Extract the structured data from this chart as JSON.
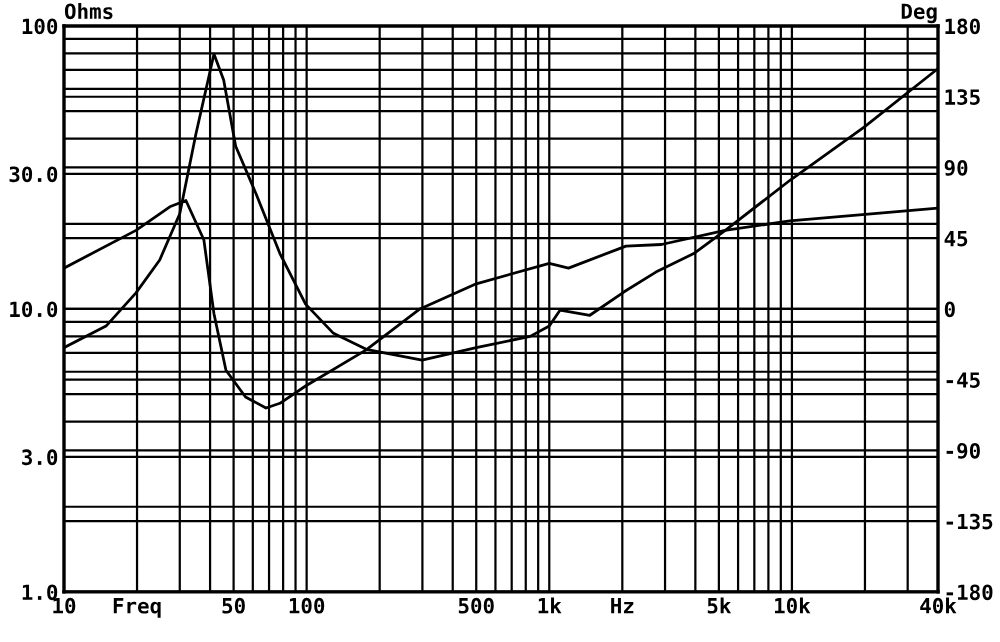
{
  "chart_data": {
    "type": "line",
    "ylabel": "Ohms",
    "y2label": "Deg",
    "log": "xy",
    "grid": true,
    "legend": false,
    "marker": "none",
    "line_style": "solid",
    "xlim": [
      10,
      40000
    ],
    "xticks": [
      10,
      {
        "value": 20,
        "label": "Freq"
      },
      50,
      100,
      500,
      {
        "value": 1000,
        "label": "1k"
      },
      {
        "value": 2000,
        "label": "Hz"
      },
      {
        "value": 5000,
        "label": "5k"
      },
      {
        "value": 10000,
        "label": "10k"
      },
      {
        "value": 40000,
        "label": "40k"
      }
    ],
    "ylim": [
      1,
      100
    ],
    "yticks": [
      {
        "value": 1,
        "label": "1.0"
      },
      {
        "value": 3,
        "label": "3.0"
      },
      {
        "value": 10,
        "label": "10.0"
      },
      {
        "value": 30,
        "label": "30.0"
      },
      100
    ],
    "y2lim": [
      -180,
      180
    ],
    "y2ticks": [
      -180,
      -135,
      -90,
      -45,
      0,
      45,
      90,
      135,
      180
    ],
    "series": [
      {
        "color": "#000000",
        "x": [
          10,
          14.9,
          19.8,
          24.8,
          30,
          35,
          41.5,
          45.5,
          51,
          61.8,
          77.6,
          99,
          129,
          176,
          299,
          500,
          834,
          1000,
          1107,
          1470,
          2035,
          2750,
          3940,
          5330,
          9820,
          19900,
          39400
        ],
        "values": [
          7.3,
          8.7,
          11.4,
          14.9,
          21.7,
          41.7,
          79.6,
          64.5,
          37.6,
          25.6,
          15.7,
          10.4,
          8.2,
          7.2,
          6.6,
          7.3,
          8.0,
          8.7,
          9.9,
          9.5,
          11.5,
          13.5,
          15.7,
          19,
          28.5,
          44,
          70
        ]
      },
      {
        "color": "#000000",
        "axis": "y2",
        "x": [
          10,
          19.8,
          27.3,
          31.8,
          37.7,
          41.5,
          46.5,
          56,
          68,
          77.6,
          99,
          176,
          293,
          500,
          1000,
          1200,
          2070,
          2900,
          5300,
          9800,
          39400
        ],
        "values": [
          26,
          50,
          65,
          69,
          44,
          -3,
          -39,
          -56,
          -63,
          -60,
          -49,
          -26,
          0,
          16,
          29,
          26,
          40,
          41,
          50,
          56,
          64
        ]
      }
    ]
  }
}
